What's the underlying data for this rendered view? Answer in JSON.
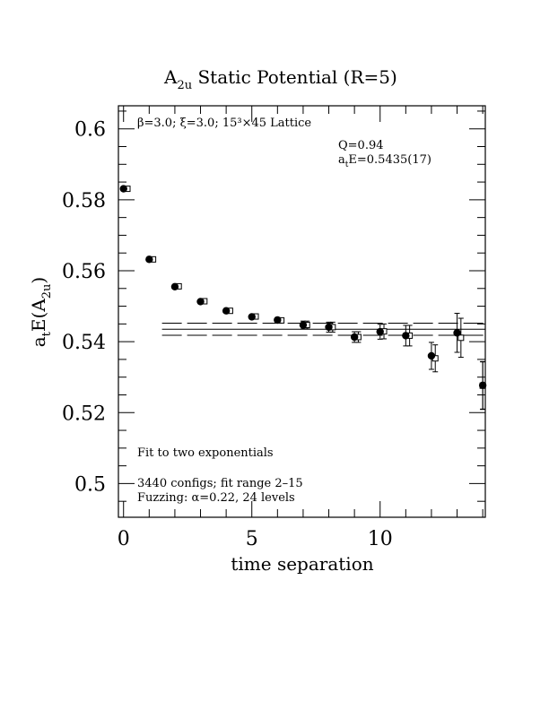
{
  "chart_data": {
    "type": "scatter",
    "title": "A",
    "title_sub": "2u",
    "title_rest": " Static Potential (R=5)",
    "xlabel": "time separation",
    "ylabel_main": "a",
    "ylabel_sub1": "t",
    "ylabel_mid": "E(A",
    "ylabel_sub2": "2u",
    "ylabel_end": ")",
    "xlim": [
      -0.2,
      14.1
    ],
    "ylim": [
      0.4905,
      0.6065
    ],
    "x_ticks": [
      0,
      5,
      10
    ],
    "x_tick_labels": [
      "0",
      "5",
      "10"
    ],
    "y_ticks": [
      0.5,
      0.52,
      0.54,
      0.56,
      0.58,
      0.6
    ],
    "y_tick_labels": [
      "0.5",
      "0.52",
      "0.54",
      "0.56",
      "0.58",
      "0.6"
    ],
    "grid": false,
    "annotations": {
      "lattice": "β=3.0; ξ=3.0; 15³×45 Lattice",
      "q": "Q=0.94",
      "energy_a": "a",
      "energy_t": "t",
      "energy_rest": "E=0.5435(17)",
      "fit": "Fit to two exponentials",
      "configs": "3440 configs; fit range 2–15",
      "fuzzing": "Fuzzing: α=0.22, 24 levels"
    },
    "fit": {
      "value": 0.5435,
      "upper": 0.5452,
      "lower": 0.5418,
      "x_range": [
        1.5,
        14.1
      ]
    },
    "series": [
      {
        "name": "filled",
        "marker": "filled-circle",
        "x": [
          0,
          1,
          2,
          3,
          4,
          5,
          6,
          7,
          8,
          9,
          10,
          11,
          12,
          13,
          14
        ],
        "y": [
          0.5831,
          0.5632,
          0.5555,
          0.5513,
          0.5487,
          0.547,
          0.5461,
          0.5447,
          0.5441,
          0.5413,
          0.5428,
          0.5417,
          0.536,
          0.5425,
          0.5277
        ],
        "err": [
          0.0006,
          0.0005,
          0.0005,
          0.0005,
          0.0006,
          0.0006,
          0.0007,
          0.0011,
          0.0014,
          0.0015,
          0.0021,
          0.0029,
          0.0038,
          0.0055,
          0.0067
        ]
      },
      {
        "name": "open",
        "marker": "open-square",
        "x": [
          0.15,
          1.15,
          2.15,
          3.15,
          4.15,
          5.15,
          6.15,
          7.15,
          8.15,
          9.15,
          10.15,
          11.15,
          12.15,
          13.15,
          14.0
        ],
        "y": [
          0.5831,
          0.5632,
          0.5556,
          0.5514,
          0.5487,
          0.5471,
          0.546,
          0.5447,
          0.5441,
          0.5413,
          0.5429,
          0.5417,
          0.5353,
          0.5411,
          0.5276
        ],
        "err": [
          0.0006,
          0.0005,
          0.0005,
          0.0005,
          0.0006,
          0.0006,
          0.0007,
          0.0011,
          0.0014,
          0.0015,
          0.0021,
          0.0029,
          0.0038,
          0.0055,
          0.0067
        ]
      }
    ]
  }
}
